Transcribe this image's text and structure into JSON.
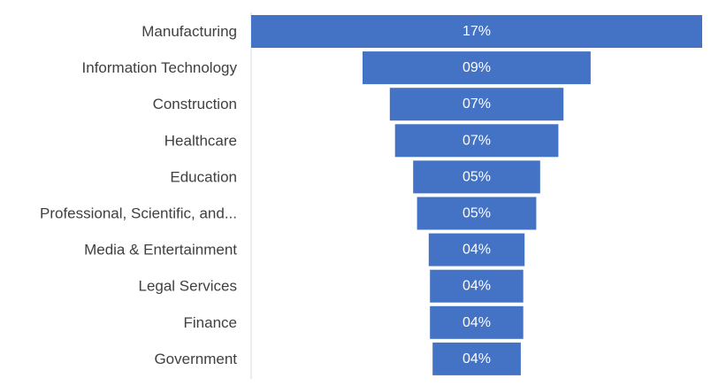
{
  "chart_data": {
    "type": "bar",
    "orientation": "horizontal-centered-funnel",
    "categories": [
      "Manufacturing",
      "Information Technology",
      "Construction",
      "Healthcare",
      "Education",
      "Professional, Scientific, and...",
      "Media & Entertainment",
      "Legal Services",
      "Finance",
      "Government"
    ],
    "values": [
      17,
      9,
      7,
      7,
      5,
      5,
      4,
      4,
      4,
      4
    ],
    "bar_value_scale": [
      17.4,
      8.8,
      6.7,
      6.3,
      4.9,
      4.6,
      3.7,
      3.6,
      3.6,
      3.4
    ],
    "data_labels": [
      "17%",
      "09%",
      "07%",
      "07%",
      "05%",
      "05%",
      "04%",
      "04%",
      "04%",
      "04%"
    ],
    "title": "",
    "xlabel": "",
    "ylabel": "",
    "grid": false,
    "colors": {
      "bar": "#4472C4",
      "label": "#404040",
      "axis": "#D9D9D9"
    }
  }
}
